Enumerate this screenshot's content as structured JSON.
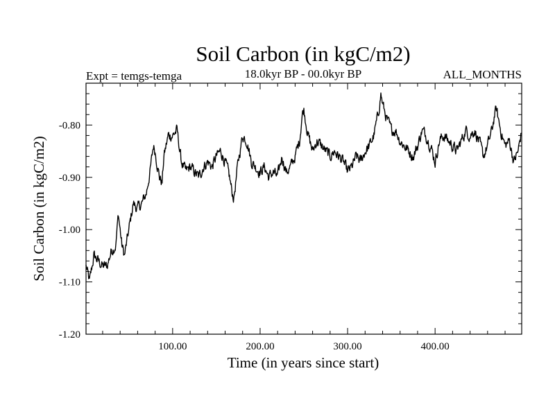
{
  "chart_data": {
    "type": "line",
    "title": "Soil Carbon (in kgC/m2)",
    "subtitle": "18.0kyr BP - 00.0kyr BP",
    "left_label": "Expt = temgs-temga",
    "right_label": "ALL_MONTHS",
    "xlabel": "Time (in years since start)",
    "ylabel": "Soil Carbon (in kgC/m2)",
    "xlim": [
      1,
      499
    ],
    "ylim": [
      -1.2,
      -0.72
    ],
    "x_ticks": [
      100,
      200,
      300,
      400
    ],
    "x_tick_labels": [
      "100.00",
      "200.00",
      "300.00",
      "400.00"
    ],
    "y_ticks": [
      -1.2,
      -1.1,
      -1.0,
      -0.9,
      -0.8
    ],
    "y_tick_labels": [
      "-1.20",
      "-1.10",
      "-1.00",
      "-0.90",
      "-0.80"
    ],
    "series": [
      {
        "name": "Soil Carbon",
        "color": "#000000",
        "x": [
          1,
          5,
          10,
          15,
          20,
          25,
          30,
          35,
          38,
          42,
          45,
          50,
          55,
          60,
          65,
          70,
          75,
          78,
          80,
          85,
          88,
          90,
          95,
          100,
          105,
          110,
          115,
          120,
          125,
          130,
          135,
          140,
          145,
          150,
          155,
          160,
          165,
          168,
          170,
          175,
          180,
          185,
          190,
          195,
          200,
          205,
          210,
          215,
          220,
          225,
          230,
          235,
          240,
          245,
          248,
          250,
          255,
          260,
          265,
          270,
          275,
          280,
          285,
          290,
          295,
          300,
          305,
          310,
          315,
          320,
          325,
          330,
          335,
          338,
          340,
          345,
          350,
          355,
          360,
          365,
          370,
          375,
          380,
          385,
          390,
          395,
          400,
          405,
          410,
          415,
          420,
          425,
          430,
          435,
          440,
          445,
          450,
          455,
          460,
          465,
          468,
          470,
          475,
          480,
          485,
          490,
          495,
          499
        ],
        "y": [
          -1.07,
          -1.1,
          -1.05,
          -1.06,
          -1.07,
          -1.07,
          -1.04,
          -1.03,
          -0.97,
          -1.03,
          -1.05,
          -1.0,
          -0.95,
          -0.96,
          -0.95,
          -0.93,
          -0.88,
          -0.84,
          -0.85,
          -0.9,
          -0.91,
          -0.86,
          -0.82,
          -0.82,
          -0.81,
          -0.87,
          -0.89,
          -0.88,
          -0.89,
          -0.9,
          -0.88,
          -0.87,
          -0.88,
          -0.86,
          -0.85,
          -0.87,
          -0.9,
          -0.93,
          -0.94,
          -0.87,
          -0.82,
          -0.83,
          -0.87,
          -0.88,
          -0.89,
          -0.88,
          -0.9,
          -0.89,
          -0.9,
          -0.86,
          -0.89,
          -0.88,
          -0.86,
          -0.83,
          -0.78,
          -0.77,
          -0.82,
          -0.85,
          -0.83,
          -0.84,
          -0.85,
          -0.86,
          -0.85,
          -0.86,
          -0.87,
          -0.89,
          -0.88,
          -0.86,
          -0.87,
          -0.85,
          -0.84,
          -0.82,
          -0.78,
          -0.74,
          -0.76,
          -0.79,
          -0.81,
          -0.81,
          -0.83,
          -0.84,
          -0.85,
          -0.86,
          -0.84,
          -0.81,
          -0.82,
          -0.84,
          -0.87,
          -0.83,
          -0.82,
          -0.83,
          -0.84,
          -0.85,
          -0.83,
          -0.81,
          -0.82,
          -0.81,
          -0.83,
          -0.86,
          -0.84,
          -0.81,
          -0.78,
          -0.77,
          -0.81,
          -0.84,
          -0.83,
          -0.87,
          -0.85,
          -0.81
        ]
      }
    ]
  }
}
